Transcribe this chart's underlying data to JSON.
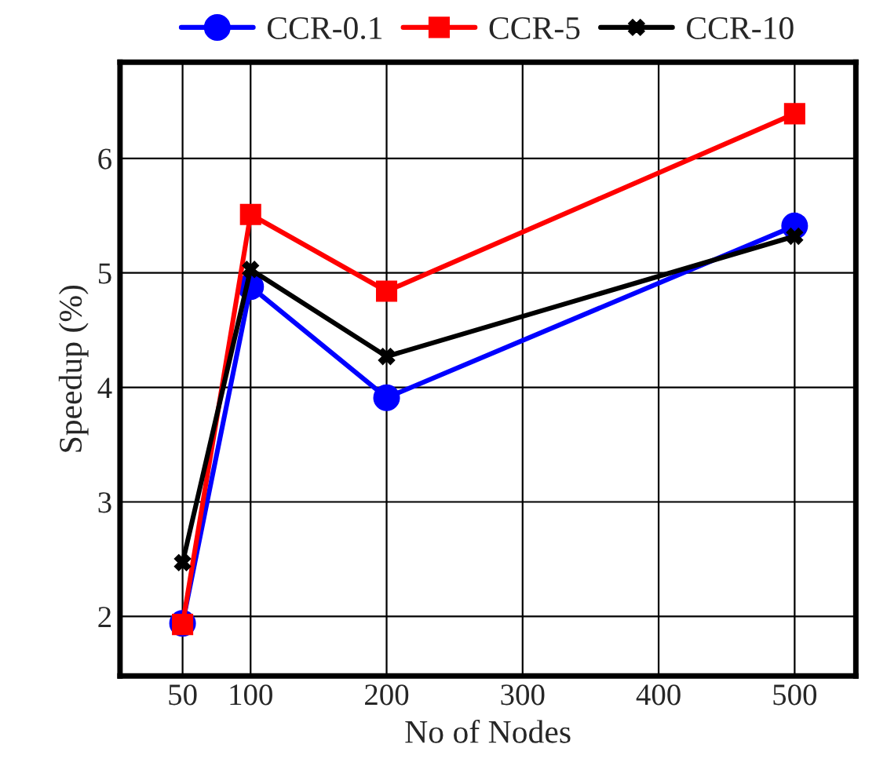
{
  "chart_data": {
    "type": "line",
    "xlabel": "No of Nodes",
    "ylabel": "Speedup (%)",
    "x": [
      50,
      100,
      200,
      500
    ],
    "series": [
      {
        "name": "CCR-0.1",
        "color": "#0000ff",
        "marker": "circle",
        "values": [
          1.94,
          4.88,
          3.91,
          5.41
        ]
      },
      {
        "name": "CCR-5",
        "color": "#ff0000",
        "marker": "square",
        "values": [
          1.93,
          5.51,
          4.84,
          6.39
        ]
      },
      {
        "name": "CCR-10",
        "color": "#000000",
        "marker": "cross",
        "values": [
          2.47,
          5.03,
          4.27,
          5.32
        ]
      }
    ],
    "xlim": [
      4,
      545
    ],
    "xticks": [
      50,
      100,
      200,
      300,
      400,
      500
    ],
    "ylim": [
      1.48,
      6.84
    ],
    "yticks": [
      2,
      3,
      4,
      5,
      6
    ],
    "grid": true,
    "legend": "top",
    "line_style": "solid"
  }
}
